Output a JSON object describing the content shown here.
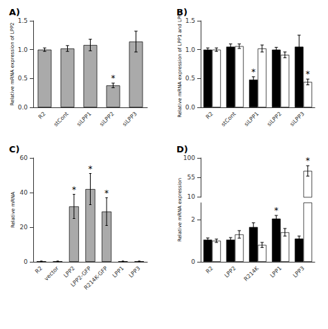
{
  "chart_data": [
    {
      "type": "bar",
      "title": "A)",
      "categories": [
        "R2",
        "stCont",
        "siLPP1",
        "siLPP2",
        "siLPP3"
      ],
      "values": [
        1.0,
        1.02,
        1.08,
        0.38,
        1.14
      ],
      "errors": [
        0.03,
        0.05,
        0.1,
        0.04,
        0.18
      ],
      "color": "#aaaaaa",
      "annotations": [
        {
          "text": "*",
          "category": "siLPP2"
        }
      ],
      "ylabel": "Relative mRNA expression of LPP2",
      "ylim": [
        0,
        1.5
      ],
      "yticks": [
        {
          "value": 0,
          "label": "0.0"
        },
        0.5,
        {
          "value": 1,
          "label": "1.0"
        },
        1.5
      ],
      "grid": false
    },
    {
      "type": "bar",
      "title": "B)",
      "categories": [
        "R2",
        "stCont",
        "siLPP1",
        "siLPP2",
        "siLPP3"
      ],
      "series": [
        {
          "color": "#000000",
          "values": [
            1.0,
            1.05,
            0.48,
            1.0,
            1.05
          ],
          "errors": [
            0.03,
            0.05,
            0.05,
            0.04,
            0.2
          ],
          "annotations": [
            {
              "text": "*",
              "category": "siLPP1"
            }
          ]
        },
        {
          "color": "#ffffff",
          "values": [
            1.0,
            1.06,
            1.02,
            0.91,
            0.44
          ],
          "errors": [
            0.03,
            0.04,
            0.06,
            0.05,
            0.05
          ],
          "annotations": [
            {
              "text": "*",
              "category": "siLPP3"
            }
          ]
        }
      ],
      "ylabel": "Relative mRNA expression of LPP1 and LPP3",
      "ylim": [
        0,
        1.5
      ],
      "yticks": [
        {
          "value": 0,
          "label": "0.0"
        },
        0.5,
        {
          "value": 1,
          "label": "1.0"
        },
        1.5
      ],
      "grid": false
    },
    {
      "type": "bar",
      "title": "C)",
      "categories": [
        "R2",
        "vector",
        "LPP2",
        "LPP2-GFP",
        "R214K-GFP",
        "LPP1",
        "LPP3"
      ],
      "values": [
        0.3,
        0.3,
        32,
        42,
        29,
        0.3,
        0.3
      ],
      "errors": [
        0.15,
        0.15,
        7,
        9,
        8,
        0.15,
        0.15
      ],
      "color": "#aaaaaa",
      "annotations": [
        {
          "text": "*",
          "category": "LPP2"
        },
        {
          "text": "*",
          "category": "LPP2-GFP"
        },
        {
          "text": "*",
          "category": "R214K-GFP"
        }
      ],
      "ylabel": "Relative mRNA",
      "ylim": [
        0,
        60
      ],
      "yticks": [
        0,
        20,
        40,
        60
      ],
      "grid": false
    },
    {
      "type": "bar",
      "title": "D)",
      "categories": [
        "R2",
        "LPP2",
        "R214K",
        "LPP1",
        "LPP3"
      ],
      "series": [
        {
          "color": "#000000",
          "values": [
            1.05,
            1.05,
            1.65,
            2.05,
            1.1
          ],
          "errors": [
            0.08,
            0.1,
            0.2,
            0.15,
            0.12
          ],
          "annotations": [
            {
              "text": "*",
              "category": "LPP1"
            }
          ]
        },
        {
          "color": "#ffffff",
          "values": [
            1.0,
            1.3,
            0.8,
            1.4,
            70.0
          ],
          "errors": [
            0.08,
            0.18,
            0.12,
            0.18,
            12.0
          ],
          "annotations": [
            {
              "text": "*",
              "category": "LPP3"
            }
          ]
        }
      ],
      "ylabel": "Relative mRNA expression",
      "ylim": [
        [
          0,
          2.8
        ],
        [
          9,
          100
        ]
      ],
      "yticks": [
        [
          0,
          2
        ],
        [
          10,
          55,
          100
        ]
      ],
      "grid": false
    }
  ]
}
